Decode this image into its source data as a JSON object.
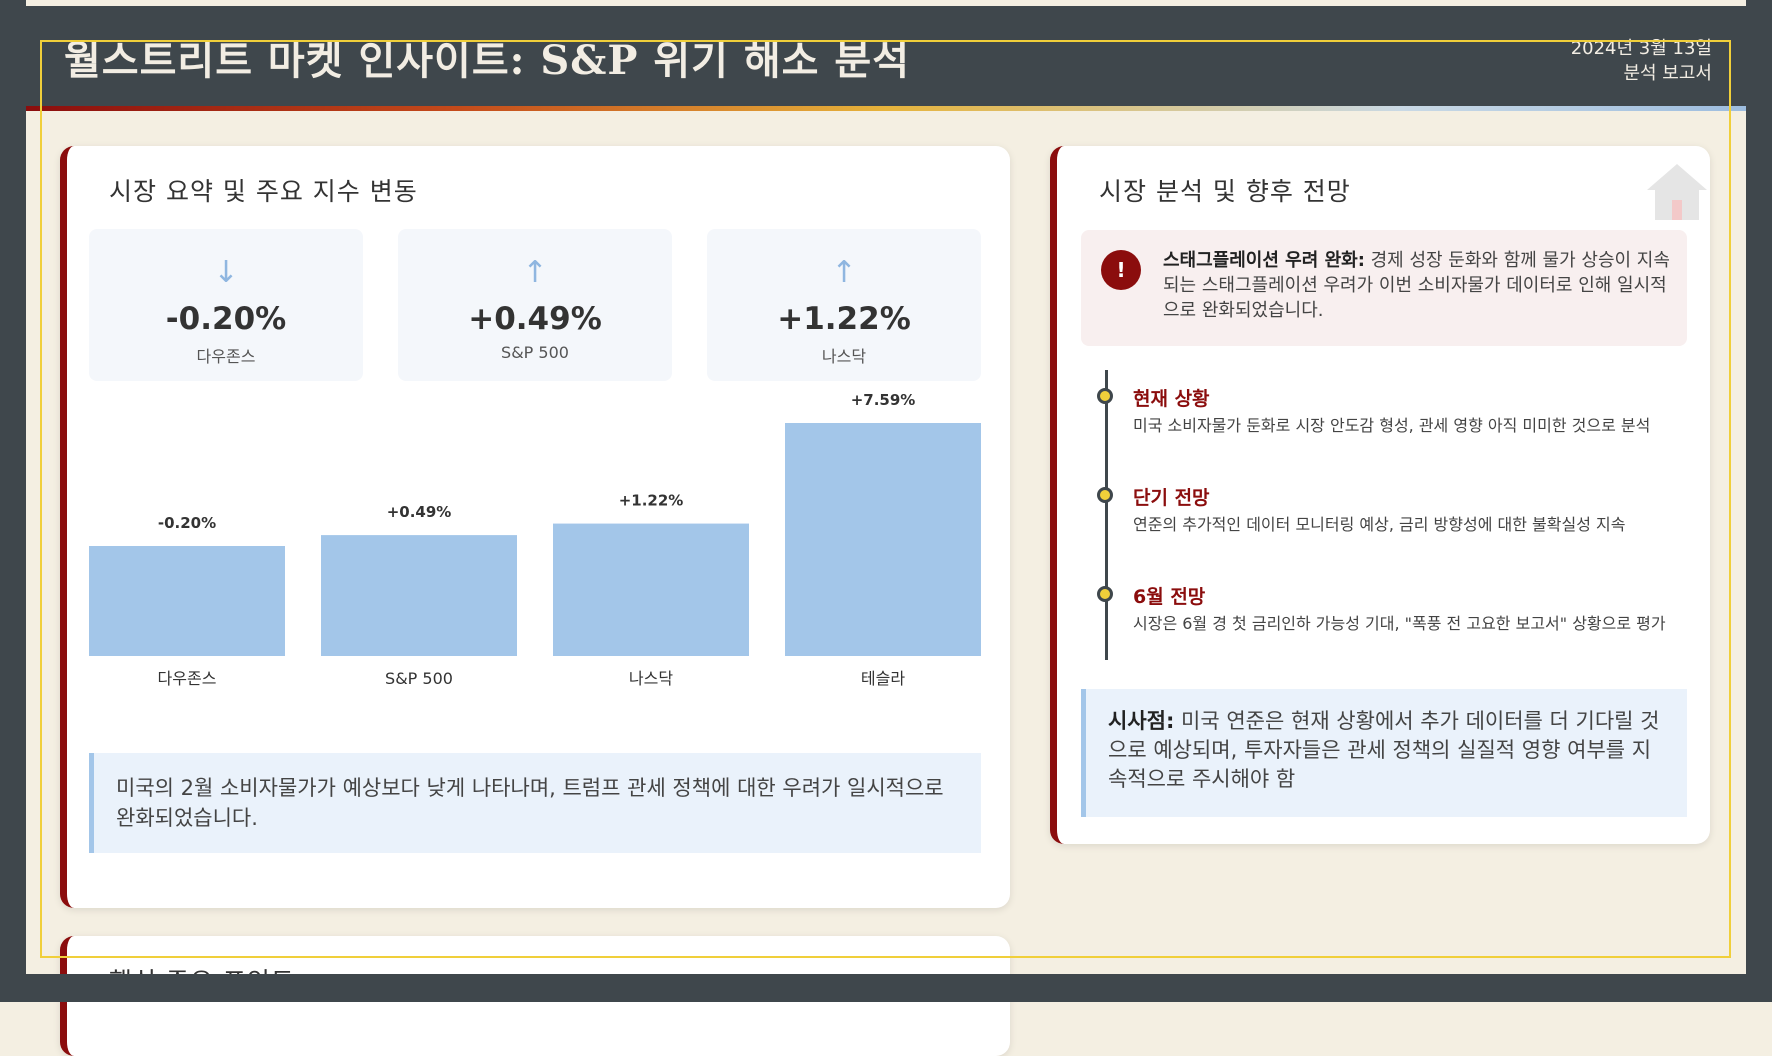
{
  "header": {
    "title": "월스트리트 마켓 인사이트: S&P 위기 해소 분석",
    "date": "2024년 3월 13일",
    "subtitle": "분석 보고서"
  },
  "colors": {
    "primary_dark": "#3f474c",
    "accent_red": "#8b0d0d",
    "accent_yellow": "#f0cf3a",
    "bar_blue": "#a3c6e9",
    "background": "#f4efe2"
  },
  "market_card": {
    "title": "시장 요약 및 주요 지수 변동",
    "stats": [
      {
        "icon": "arrow-down-icon",
        "arrow": "↓",
        "value": "-0.20%",
        "label": "다우존스"
      },
      {
        "icon": "arrow-up-icon",
        "arrow": "↑",
        "value": "+0.49%",
        "label": "S&P 500"
      },
      {
        "icon": "arrow-up-icon",
        "arrow": "↑",
        "value": "+1.22%",
        "label": "나스닥"
      }
    ],
    "note": "미국의 2월 소비자물가가 예상보다 낮게 나타나며, 트럼프 관세 정책에 대한 우려가 일시적으로 완화되었습니다."
  },
  "chart_data": {
    "type": "bar",
    "categories": [
      "다우존스",
      "S&P 500",
      "나스닥",
      "테슬라"
    ],
    "values": [
      -0.2,
      0.49,
      1.22,
      7.59
    ],
    "data_labels": [
      "-0.20%",
      "+0.49%",
      "+1.22%",
      "+7.59%"
    ],
    "title": "",
    "xlabel": "",
    "ylabel": "",
    "grid": false,
    "bar_color": "#a3c6e9"
  },
  "analysis_card": {
    "title": "시장 분석 및 향후 전망",
    "alert": {
      "icon": "exclamation-icon",
      "icon_text": "!",
      "heading": "스태그플레이션 우려 완화:",
      "text": "경제 성장 둔화와 함께 물가 상승이 지속되는 스태그플레이션 우려가 이번 소비자물가 데이터로 인해 일시적으로 완화되었습니다."
    },
    "timeline": [
      {
        "title": "현재 상황",
        "desc": "미국 소비자물가 둔화로 시장 안도감 형성, 관세 영향 아직 미미한 것으로 분석"
      },
      {
        "title": "단기 전망",
        "desc": "연준의 추가적인 데이터 모니터링 예상, 금리 방향성에 대한 불확실성 지속"
      },
      {
        "title": "6월 전망",
        "desc": "시장은 6월 경 첫 금리인하 가능성 기대, \"폭풍 전 고요한 보고서\" 상황으로 평가"
      }
    ],
    "implication": {
      "heading": "시사점:",
      "text": "미국 연준은 현재 상황에서 추가 데이터를 더 기다릴 것으로 예상되며, 투자자들은 관세 정책의 실질적 영향 여부를 지속적으로 주시해야 함"
    }
  },
  "key_points_card": {
    "title": "핵심 주요 포인트"
  }
}
